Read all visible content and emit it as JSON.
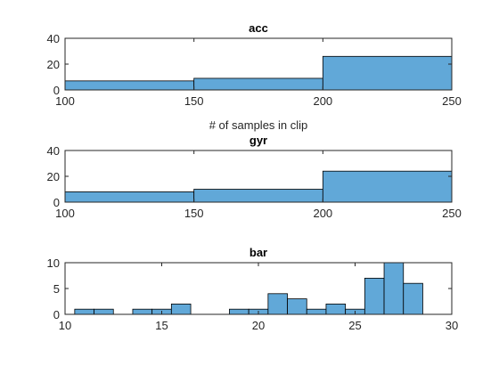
{
  "chart_data": [
    {
      "type": "bar",
      "title": "acc",
      "xlabel": "# of samples in clip",
      "ylabel": "",
      "xlim": [
        100,
        250
      ],
      "ylim": [
        0,
        40
      ],
      "xticks": [
        100,
        150,
        200,
        250
      ],
      "yticks": [
        0,
        20,
        40
      ],
      "bins": [
        {
          "from": 100,
          "to": 150,
          "count": 7
        },
        {
          "from": 150,
          "to": 200,
          "count": 9
        },
        {
          "from": 200,
          "to": 250,
          "count": 26
        }
      ]
    },
    {
      "type": "bar",
      "title": "gyr",
      "xlabel": "",
      "ylabel": "",
      "xlim": [
        100,
        250
      ],
      "ylim": [
        0,
        40
      ],
      "xticks": [
        100,
        150,
        200,
        250
      ],
      "yticks": [
        0,
        20,
        40
      ],
      "bins": [
        {
          "from": 100,
          "to": 150,
          "count": 8
        },
        {
          "from": 150,
          "to": 200,
          "count": 10
        },
        {
          "from": 200,
          "to": 250,
          "count": 24
        }
      ]
    },
    {
      "type": "bar",
      "title": "bar",
      "xlabel": "",
      "ylabel": "",
      "xlim": [
        10,
        30
      ],
      "ylim": [
        0,
        10
      ],
      "xticks": [
        10,
        15,
        20,
        25,
        30
      ],
      "yticks": [
        0,
        5,
        10
      ],
      "bins": [
        {
          "from": 10.5,
          "to": 11.5,
          "count": 1
        },
        {
          "from": 11.5,
          "to": 12.5,
          "count": 1
        },
        {
          "from": 12.5,
          "to": 13.5,
          "count": 0
        },
        {
          "from": 13.5,
          "to": 14.5,
          "count": 1
        },
        {
          "from": 14.5,
          "to": 15.5,
          "count": 1
        },
        {
          "from": 15.5,
          "to": 16.5,
          "count": 2
        },
        {
          "from": 16.5,
          "to": 17.5,
          "count": 0
        },
        {
          "from": 17.5,
          "to": 18.5,
          "count": 0
        },
        {
          "from": 18.5,
          "to": 19.5,
          "count": 1
        },
        {
          "from": 19.5,
          "to": 20.5,
          "count": 1
        },
        {
          "from": 20.5,
          "to": 21.5,
          "count": 4
        },
        {
          "from": 21.5,
          "to": 22.5,
          "count": 3
        },
        {
          "from": 22.5,
          "to": 23.5,
          "count": 1
        },
        {
          "from": 23.5,
          "to": 24.5,
          "count": 2
        },
        {
          "from": 24.5,
          "to": 25.5,
          "count": 1
        },
        {
          "from": 25.5,
          "to": 26.5,
          "count": 7
        },
        {
          "from": 26.5,
          "to": 27.5,
          "count": 10
        },
        {
          "from": 27.5,
          "to": 28.5,
          "count": 6
        }
      ]
    }
  ],
  "colors": {
    "bar_fill": "#61a8d8",
    "bar_edge": "#000000",
    "axis": "#262626"
  }
}
